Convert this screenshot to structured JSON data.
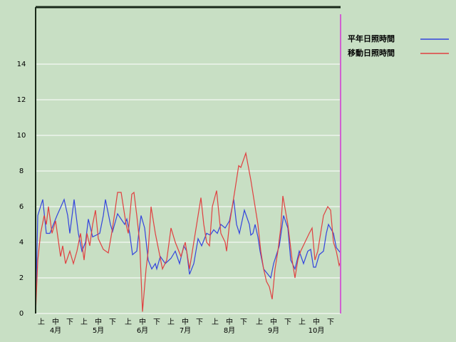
{
  "chart_data": {
    "type": "line",
    "xlim": [
      0,
      214
    ],
    "ylim": [
      0,
      17.2
    ],
    "yticks": [
      0,
      2,
      4,
      6,
      8,
      10,
      12,
      14
    ],
    "grid": true,
    "xticks": [
      {
        "value": 4,
        "label": "上"
      },
      {
        "value": 14,
        "label": "中"
      },
      {
        "value": 24,
        "label": "下"
      },
      {
        "value": 34,
        "label": "上"
      },
      {
        "value": 44,
        "label": "中"
      },
      {
        "value": 54,
        "label": "下"
      },
      {
        "value": 65,
        "label": "上"
      },
      {
        "value": 75,
        "label": "中"
      },
      {
        "value": 85,
        "label": "下"
      },
      {
        "value": 95,
        "label": "上"
      },
      {
        "value": 105,
        "label": "中"
      },
      {
        "value": 115,
        "label": "下"
      },
      {
        "value": 126,
        "label": "上"
      },
      {
        "value": 136,
        "label": "中"
      },
      {
        "value": 146,
        "label": "下"
      },
      {
        "value": 157,
        "label": "上"
      },
      {
        "value": 167,
        "label": "中"
      },
      {
        "value": 177,
        "label": "下"
      },
      {
        "value": 187,
        "label": "上"
      },
      {
        "value": 197,
        "label": "中"
      },
      {
        "value": 207,
        "label": "下"
      }
    ],
    "month_ticks": [
      {
        "value": 14,
        "label": "4月"
      },
      {
        "value": 44,
        "label": "5月"
      },
      {
        "value": 75,
        "label": "6月"
      },
      {
        "value": 105,
        "label": "7月"
      },
      {
        "value": 136,
        "label": "8月"
      },
      {
        "value": 167,
        "label": "9月"
      },
      {
        "value": 197,
        "label": "10月"
      }
    ],
    "series": [
      {
        "name": "平年日照時間",
        "color": "#3344dd",
        "x": [
          0,
          1.5,
          5,
          7.5,
          10,
          12.5,
          15,
          20,
          22.5,
          24,
          27,
          30,
          32.5,
          35,
          37,
          40,
          45,
          47.5,
          49,
          52.5,
          54,
          57.5,
          62.5,
          64,
          66,
          68,
          71,
          72.5,
          74,
          76.5,
          79,
          81.5,
          84,
          85,
          87.5,
          91,
          95,
          98,
          101,
          104,
          106,
          108,
          111,
          114,
          116.5,
          120,
          122.5,
          125,
          127.5,
          130,
          133,
          136,
          139,
          141,
          143,
          146.5,
          150,
          151,
          152.5,
          154,
          156,
          157.5,
          160,
          163,
          165,
          167,
          171,
          174,
          177,
          179,
          182,
          185,
          188,
          191,
          193,
          195,
          196.5,
          199,
          202,
          204,
          205.5,
          209,
          211,
          213,
          214
        ],
        "values": [
          0,
          5.5,
          6.4,
          4.5,
          4.5,
          5,
          5.5,
          6.4,
          5.5,
          4.5,
          6.4,
          4.5,
          3.5,
          4,
          5.3,
          4.3,
          4.5,
          5.5,
          6.4,
          5,
          4.6,
          5.6,
          5,
          5.3,
          4.5,
          3.3,
          3.5,
          4.6,
          5.5,
          4.8,
          3,
          2.5,
          2.8,
          2.5,
          3.2,
          2.8,
          3.1,
          3.5,
          2.8,
          3.8,
          3.5,
          2.2,
          2.8,
          4.2,
          3.8,
          4.5,
          4.4,
          4.7,
          4.5,
          5,
          4.8,
          5.2,
          6.4,
          5,
          4.5,
          5.8,
          5,
          4.4,
          4.5,
          5,
          4.3,
          3.5,
          2.5,
          2.2,
          2,
          2.8,
          3.8,
          5.5,
          4.8,
          3,
          2.5,
          3.5,
          2.8,
          3.5,
          3.6,
          2.6,
          2.6,
          3.3,
          3.5,
          4.5,
          5,
          4.5,
          3.7,
          3.5,
          3.4
        ]
      },
      {
        "name": "移動日照時間",
        "color": "#e04040",
        "x": [
          0,
          1.5,
          3.5,
          6,
          7.5,
          9,
          11.5,
          14,
          17.5,
          19,
          21,
          24,
          26.5,
          29,
          31.5,
          34,
          36,
          38,
          40,
          42,
          44,
          47.5,
          51,
          54,
          57.5,
          60,
          63.5,
          65,
          67.5,
          69,
          71,
          73,
          75,
          77.5,
          79,
          81,
          84,
          89,
          92,
          95,
          98,
          102,
          105,
          108,
          110,
          113,
          116,
          118,
          120,
          122,
          124,
          127,
          130,
          133,
          134,
          136,
          140,
          142.5,
          144,
          147.5,
          151,
          154,
          156,
          158,
          160,
          162,
          164,
          166,
          168,
          170,
          172,
          173.5,
          177,
          180,
          182,
          184,
          186,
          189,
          192,
          194,
          196,
          198,
          202,
          205,
          207,
          209,
          211,
          213,
          214
        ],
        "values": [
          0,
          3,
          4.5,
          5.5,
          5,
          6,
          4.5,
          5.2,
          3.2,
          3.8,
          2.8,
          3.5,
          2.8,
          3.5,
          4.5,
          3,
          4.5,
          3.8,
          5,
          5.8,
          4.2,
          3.6,
          3.4,
          4.8,
          6.8,
          6.8,
          5,
          4.5,
          6.7,
          6.8,
          5.5,
          4,
          0.1,
          2.5,
          3.5,
          6,
          4.5,
          2.5,
          3,
          4.8,
          4,
          3.2,
          4,
          2.5,
          3.5,
          5,
          6.5,
          5,
          4,
          3.8,
          6,
          6.9,
          4.5,
          4,
          3.5,
          5,
          7,
          8.3,
          8.2,
          9,
          7.5,
          6,
          5,
          3.5,
          2.5,
          1.8,
          1.5,
          0.8,
          2.5,
          3.5,
          4.8,
          6.6,
          5,
          3,
          2,
          3,
          3.5,
          4,
          4.5,
          4.8,
          3,
          3.5,
          5.5,
          6,
          5.8,
          4,
          3.5,
          2.7,
          2.9
        ]
      }
    ]
  }
}
